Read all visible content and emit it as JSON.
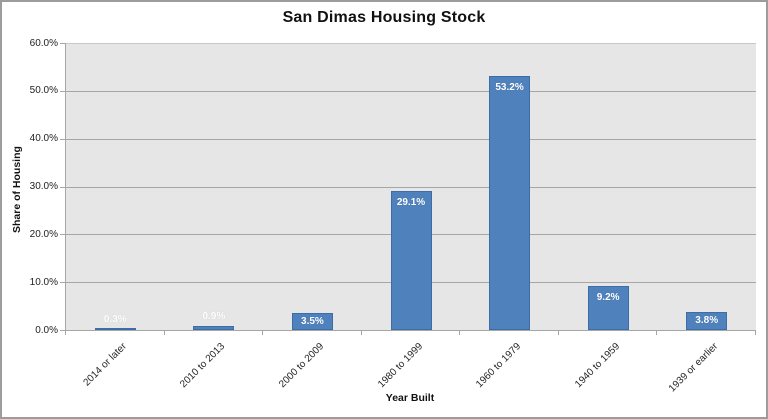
{
  "chart_data": {
    "type": "bar",
    "title": "San Dimas Housing Stock",
    "categories": [
      "2014 or later",
      "2010 to 2013",
      "2000 to 2009",
      "1980 to 1999",
      "1960 to 1979",
      "1940 to 1959",
      "1939 or earlier"
    ],
    "values": [
      0.3,
      0.9,
      3.5,
      29.1,
      53.2,
      9.2,
      3.8
    ],
    "value_labels": [
      "0.3%",
      "0.9%",
      "3.5%",
      "29.1%",
      "53.2%",
      "9.2%",
      "3.8%"
    ],
    "xlabel": "Year Built",
    "ylabel": "Share of Housing",
    "ylim": [
      0,
      60
    ],
    "ytick_step": 10,
    "yticks": [
      "0.0%",
      "10.0%",
      "20.0%",
      "30.0%",
      "40.0%",
      "50.0%",
      "60.0%"
    ],
    "grid": true,
    "legend": "none"
  },
  "colors": {
    "bar_fill": "#4F81BD",
    "bar_border": "#3D6DA6",
    "plot_bg": "#E6E6E6",
    "gridline": "#A6A6A6",
    "gridline_top": "#C9C9C9",
    "axis_line": "#A6A6A6",
    "data_label_text": "#FFFFFF",
    "frame_border": "#9C9C9C",
    "text": "#1F1F1F"
  }
}
